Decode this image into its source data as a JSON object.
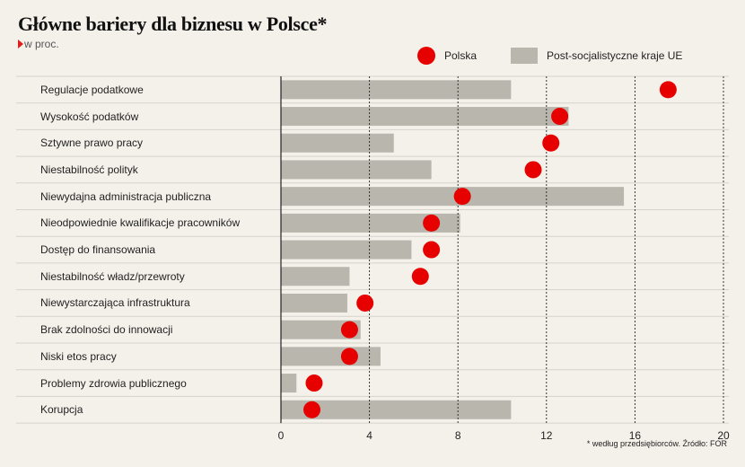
{
  "title": "Główne bariery dla biznesu w Polsce*",
  "subtitle": "w proc.",
  "footnote": "* według przedsiębiorców. Źródło: FOR",
  "colors": {
    "polska": "#e60000",
    "post_soc": "#b8b6ad",
    "grid": "#222222",
    "background": "#f4f1ea",
    "row_line": "#d6d3cb"
  },
  "chart_data": {
    "type": "bar",
    "title": "Główne bariery dla biznesu w Polsce*",
    "subtitle": "w proc.",
    "xlim": [
      0,
      20
    ],
    "xticks": [
      0,
      4,
      8,
      12,
      16,
      20
    ],
    "grid": true,
    "legend": "top-right",
    "categories": [
      "Regulacje podatkowe",
      "Wysokość podatków",
      "Sztywne prawo pracy",
      "Niestabilność polityk",
      "Niewydajna administracja publiczna",
      "Nieodpowiednie kwalifikacje pracowników",
      "Dostęp do finansowania",
      "Niestabilność władz/przewroty",
      "Niewystarczająca infrastruktura",
      "Brak zdolności do innowacji",
      "Niski etos pracy",
      "Problemy zdrowia publicznego",
      "Korupcja"
    ],
    "series": [
      {
        "name": "Post-socjalistyczne kraje UE",
        "mark": "bar",
        "values": [
          10.4,
          13.0,
          5.1,
          6.8,
          15.5,
          8.1,
          5.9,
          3.1,
          3.0,
          3.6,
          4.5,
          0.7,
          10.4
        ]
      },
      {
        "name": "Polska",
        "mark": "dot",
        "values": [
          17.5,
          12.6,
          12.2,
          11.4,
          8.2,
          6.8,
          6.8,
          6.3,
          3.8,
          3.1,
          3.1,
          1.5,
          1.4
        ]
      }
    ]
  }
}
